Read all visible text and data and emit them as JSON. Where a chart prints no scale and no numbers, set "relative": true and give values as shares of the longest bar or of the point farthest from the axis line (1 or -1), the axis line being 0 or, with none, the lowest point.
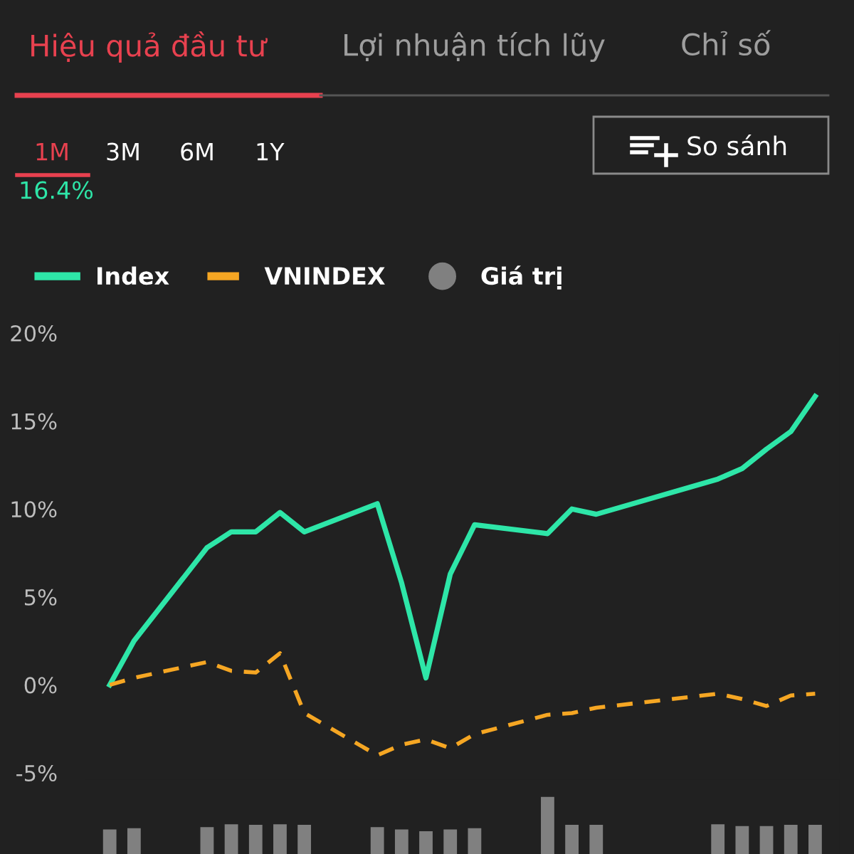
{
  "chart_data": [
    {
      "type": "line",
      "title": "Hiệu quả đầu tư",
      "annotations": [
        "Lợi nhuận tích lũy",
        "Chỉ số",
        "1M",
        "3M",
        "6M",
        "1Y",
        "16.4%",
        "So sánh"
      ],
      "categories": [
        null,
        null,
        null,
        null,
        null,
        null,
        null,
        null,
        null,
        null,
        null,
        null,
        null,
        null,
        null,
        null,
        null,
        null,
        null,
        null,
        null,
        null,
        null,
        null,
        null,
        null,
        null,
        null,
        null,
        null
      ],
      "series": [
        {
          "name": "Index",
          "color": "#2ee6a8",
          "line_style": "solid",
          "values": [
            0.0,
            2.5,
            null,
            null,
            7.8,
            8.7,
            8.7,
            9.8,
            8.7,
            null,
            null,
            10.3,
            5.8,
            0.4,
            6.3,
            9.1,
            null,
            null,
            8.6,
            10.0,
            9.7,
            null,
            null,
            null,
            null,
            11.7,
            12.3,
            13.4,
            14.4,
            16.4
          ]
        },
        {
          "name": "VNINDEX",
          "color": "#f5a623",
          "line_style": "dashed",
          "values": [
            0.0,
            0.4,
            null,
            null,
            1.3,
            0.8,
            0.7,
            1.8,
            -1.6,
            null,
            null,
            -4.0,
            -3.4,
            -3.1,
            -3.6,
            -2.8,
            null,
            null,
            -1.7,
            -1.6,
            -1.3,
            null,
            null,
            null,
            null,
            -0.5,
            -0.8,
            -1.2,
            -0.6,
            -0.5
          ]
        }
      ],
      "ylim": [
        -5,
        20
      ],
      "yticks": [
        {
          "value": -5,
          "label": "-5%"
        },
        {
          "value": 0,
          "label": "0%"
        },
        {
          "value": 5,
          "label": "5%"
        },
        {
          "value": 10,
          "label": "10%"
        },
        {
          "value": 15,
          "label": "15%"
        },
        {
          "value": 20,
          "label": "20%"
        }
      ],
      "tick_labels": "y",
      "grid": false,
      "legend": "top left",
      "marker": "none"
    },
    {
      "type": "bar",
      "relative": true,
      "tick_labels": false,
      "legend": "top left",
      "categories": [
        null,
        null,
        null,
        null,
        null,
        null,
        null,
        null,
        null,
        null,
        null,
        null,
        null,
        null,
        null,
        null,
        null,
        null,
        null,
        null,
        null,
        null,
        null,
        null,
        null,
        null,
        null,
        null,
        null,
        null
      ],
      "series": [
        {
          "name": "Giá trị",
          "color": "#808080",
          "values": [
            0.43,
            0.45,
            null,
            null,
            0.47,
            0.52,
            0.51,
            0.52,
            0.51,
            null,
            null,
            0.47,
            0.43,
            0.4,
            0.43,
            0.45,
            null,
            null,
            1,
            0.51,
            0.51,
            null,
            null,
            null,
            null,
            0.52,
            0.49,
            0.49,
            0.51,
            0.51
          ]
        }
      ]
    }
  ]
}
